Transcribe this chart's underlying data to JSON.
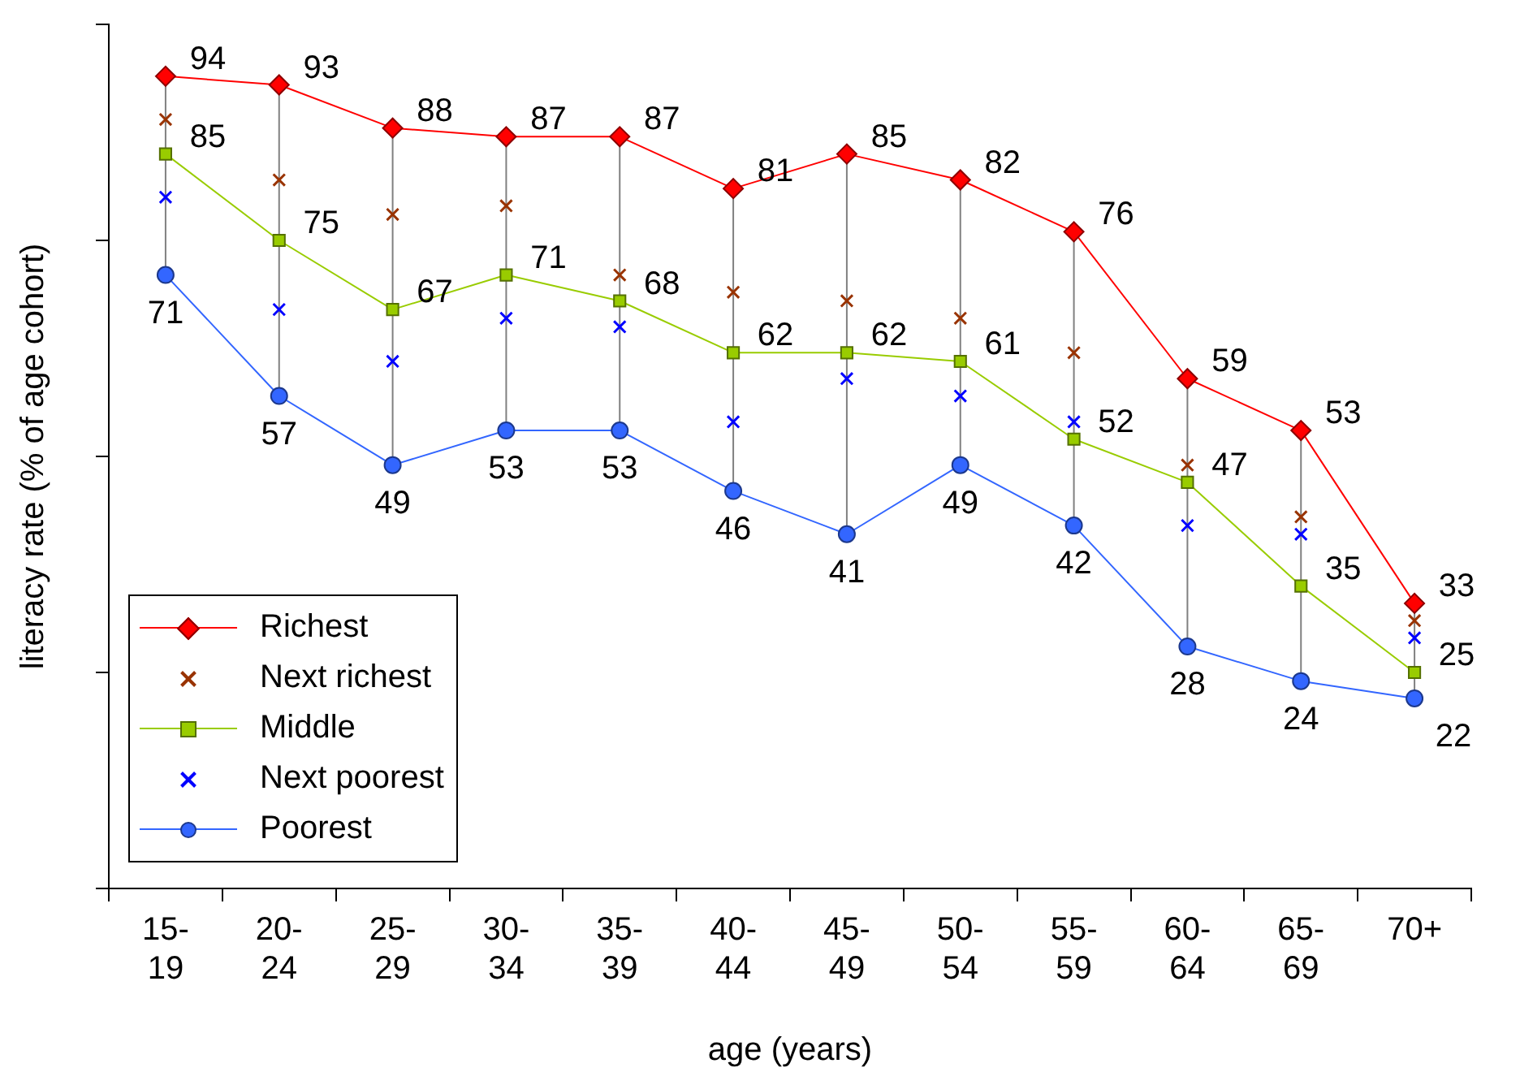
{
  "chart_data": {
    "type": "line",
    "xlabel": "age (years)",
    "ylabel": "literacy rate (% of age cohort)",
    "categories": [
      "15-19",
      "20-24",
      "25-29",
      "30-34",
      "35-39",
      "40-44",
      "45-49",
      "50-54",
      "55-59",
      "60-64",
      "65-69",
      "70+"
    ],
    "ylim": [
      0,
      100
    ],
    "yticks": [
      {
        "value": 0,
        "label": null
      },
      {
        "value": 25,
        "label": null
      },
      {
        "value": 50,
        "label": null
      },
      {
        "value": 75,
        "label": null
      },
      {
        "value": 100,
        "label": null
      }
    ],
    "tick_labels": "x",
    "grid": false,
    "legend": "bottom left",
    "series": [
      {
        "name": "Richest",
        "color": "#ff0000",
        "marker": "diamond",
        "values": [
          94,
          93,
          88,
          87,
          87,
          81,
          85,
          82,
          76,
          59,
          53,
          33
        ],
        "value_labels": [
          "94",
          "93",
          "88",
          "87",
          "87",
          "81",
          "85",
          "82",
          "76",
          "59",
          "53",
          "33"
        ]
      },
      {
        "name": "Next richest",
        "color": "#993300",
        "marker": "cross",
        "type": "scatter",
        "values": [
          89,
          82,
          78,
          79,
          71,
          69,
          68,
          66,
          62,
          49,
          43,
          31
        ]
      },
      {
        "name": "Middle",
        "color": "#99cc00",
        "marker": "square",
        "values": [
          85,
          75,
          67,
          71,
          68,
          62,
          62,
          61,
          52,
          47,
          35,
          25
        ],
        "value_labels": [
          "85",
          "75",
          "67",
          "71",
          "68",
          "62",
          "62",
          "61",
          "52",
          "47",
          "35",
          "25"
        ]
      },
      {
        "name": "Next poorest",
        "color": "#0000ff",
        "marker": "cross",
        "type": "scatter",
        "values": [
          80,
          67,
          61,
          66,
          65,
          54,
          59,
          57,
          54,
          42,
          41,
          29
        ]
      },
      {
        "name": "Poorest",
        "color": "#3366ff",
        "marker": "circle",
        "values": [
          71,
          57,
          49,
          53,
          53,
          46,
          41,
          49,
          42,
          28,
          24,
          22
        ],
        "value_labels": [
          "71",
          "57",
          "49",
          "53",
          "53",
          "46",
          "41",
          "49",
          "42",
          "28",
          "24",
          "22"
        ]
      }
    ]
  }
}
